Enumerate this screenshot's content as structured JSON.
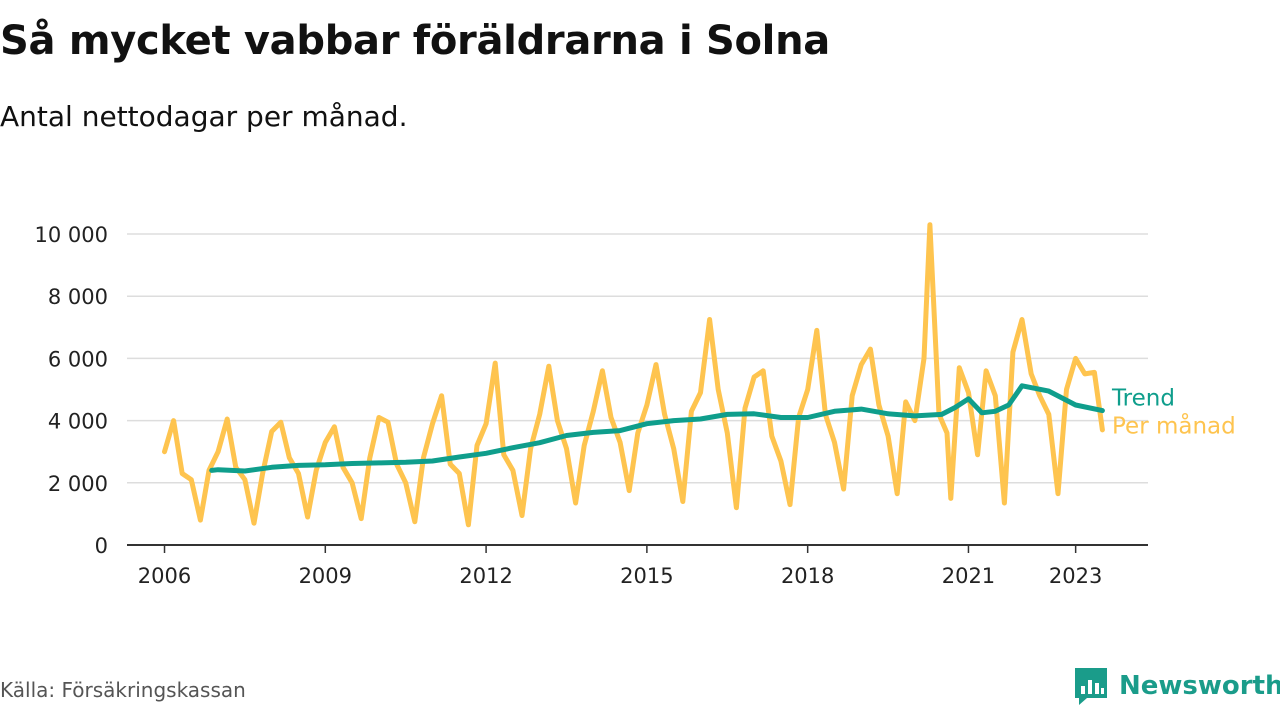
{
  "header": {
    "title": "Så mycket vabbar föräldrarna i Solna",
    "subtitle": "Antal nettodagar per månad."
  },
  "footer": {
    "source": "Källa: Försäkringskassan",
    "brand": "Newsworthy",
    "brand_icon": "bar-chart-speech-bubble-icon"
  },
  "colors": {
    "monthly": "#fec44f",
    "trend": "#0f9e8c",
    "grid": "#dddddd",
    "axis": "#333333",
    "brand": "#1a9c8a"
  },
  "chart_data": {
    "type": "line",
    "title": "Så mycket vabbar föräldrarna i Solna",
    "subtitle": "Antal nettodagar per månad.",
    "xlabel": "",
    "ylabel": "",
    "xlim": [
      2005.3,
      2024.35
    ],
    "ylim": [
      0,
      10000
    ],
    "x_ticks": [
      2006,
      2009,
      2012,
      2015,
      2018,
      2021,
      2023
    ],
    "x_tick_labels": [
      "2006",
      "2009",
      "2012",
      "2015",
      "2018",
      "2021",
      "2023"
    ],
    "y_ticks": [
      0,
      2000,
      4000,
      6000,
      8000,
      10000
    ],
    "y_tick_labels": [
      "0",
      "2 000",
      "4 000",
      "6 000",
      "8 000",
      "10 000"
    ],
    "grid": true,
    "legend": "inline labels at line ends (right)",
    "series": [
      {
        "name": "Trend",
        "points": [
          [
            2006.88,
            2400
          ],
          [
            2007.0,
            2420
          ],
          [
            2007.5,
            2380
          ],
          [
            2008.0,
            2500
          ],
          [
            2008.5,
            2560
          ],
          [
            2009.0,
            2580
          ],
          [
            2009.5,
            2620
          ],
          [
            2010.0,
            2640
          ],
          [
            2010.5,
            2660
          ],
          [
            2011.0,
            2700
          ],
          [
            2011.5,
            2830
          ],
          [
            2012.0,
            2950
          ],
          [
            2012.5,
            3130
          ],
          [
            2013.0,
            3290
          ],
          [
            2013.5,
            3520
          ],
          [
            2014.0,
            3620
          ],
          [
            2014.5,
            3680
          ],
          [
            2015.0,
            3900
          ],
          [
            2015.5,
            4000
          ],
          [
            2016.0,
            4050
          ],
          [
            2016.5,
            4200
          ],
          [
            2017.0,
            4220
          ],
          [
            2017.5,
            4100
          ],
          [
            2018.0,
            4100
          ],
          [
            2018.5,
            4300
          ],
          [
            2019.0,
            4370
          ],
          [
            2019.5,
            4220
          ],
          [
            2020.0,
            4150
          ],
          [
            2020.5,
            4200
          ],
          [
            2020.75,
            4420
          ],
          [
            2021.0,
            4700
          ],
          [
            2021.25,
            4250
          ],
          [
            2021.5,
            4300
          ],
          [
            2021.75,
            4500
          ],
          [
            2022.0,
            5120
          ],
          [
            2022.5,
            4950
          ],
          [
            2023.0,
            4500
          ],
          [
            2023.5,
            4320
          ]
        ]
      },
      {
        "name": "Per månad",
        "points": [
          [
            2006.0,
            3000
          ],
          [
            2006.17,
            4000
          ],
          [
            2006.33,
            2300
          ],
          [
            2006.5,
            2100
          ],
          [
            2006.67,
            800
          ],
          [
            2006.83,
            2400
          ],
          [
            2007.0,
            3000
          ],
          [
            2007.17,
            4050
          ],
          [
            2007.33,
            2500
          ],
          [
            2007.5,
            2100
          ],
          [
            2007.67,
            700
          ],
          [
            2007.83,
            2300
          ],
          [
            2008.0,
            3650
          ],
          [
            2008.17,
            3950
          ],
          [
            2008.33,
            2800
          ],
          [
            2008.5,
            2300
          ],
          [
            2008.67,
            900
          ],
          [
            2008.83,
            2400
          ],
          [
            2009.0,
            3300
          ],
          [
            2009.17,
            3800
          ],
          [
            2009.33,
            2500
          ],
          [
            2009.5,
            2000
          ],
          [
            2009.67,
            850
          ],
          [
            2009.83,
            2800
          ],
          [
            2010.0,
            4100
          ],
          [
            2010.17,
            3950
          ],
          [
            2010.33,
            2600
          ],
          [
            2010.5,
            2000
          ],
          [
            2010.67,
            750
          ],
          [
            2010.83,
            2800
          ],
          [
            2011.0,
            3900
          ],
          [
            2011.17,
            4800
          ],
          [
            2011.33,
            2600
          ],
          [
            2011.5,
            2300
          ],
          [
            2011.67,
            650
          ],
          [
            2011.83,
            3200
          ],
          [
            2012.0,
            3900
          ],
          [
            2012.17,
            5850
          ],
          [
            2012.33,
            2900
          ],
          [
            2012.5,
            2400
          ],
          [
            2012.67,
            950
          ],
          [
            2012.83,
            3100
          ],
          [
            2013.0,
            4200
          ],
          [
            2013.17,
            5750
          ],
          [
            2013.33,
            4000
          ],
          [
            2013.5,
            3100
          ],
          [
            2013.67,
            1350
          ],
          [
            2013.83,
            3200
          ],
          [
            2014.0,
            4300
          ],
          [
            2014.17,
            5600
          ],
          [
            2014.33,
            4100
          ],
          [
            2014.5,
            3300
          ],
          [
            2014.67,
            1750
          ],
          [
            2014.83,
            3600
          ],
          [
            2015.0,
            4500
          ],
          [
            2015.17,
            5800
          ],
          [
            2015.33,
            4200
          ],
          [
            2015.5,
            3100
          ],
          [
            2015.67,
            1400
          ],
          [
            2015.83,
            4300
          ],
          [
            2016.0,
            4900
          ],
          [
            2016.17,
            7250
          ],
          [
            2016.33,
            5000
          ],
          [
            2016.5,
            3600
          ],
          [
            2016.67,
            1200
          ],
          [
            2016.83,
            4400
          ],
          [
            2017.0,
            5400
          ],
          [
            2017.17,
            5600
          ],
          [
            2017.33,
            3500
          ],
          [
            2017.5,
            2700
          ],
          [
            2017.67,
            1300
          ],
          [
            2017.83,
            4100
          ],
          [
            2018.0,
            5000
          ],
          [
            2018.17,
            6900
          ],
          [
            2018.33,
            4200
          ],
          [
            2018.5,
            3300
          ],
          [
            2018.67,
            1800
          ],
          [
            2018.83,
            4800
          ],
          [
            2019.0,
            5800
          ],
          [
            2019.17,
            6300
          ],
          [
            2019.33,
            4500
          ],
          [
            2019.5,
            3500
          ],
          [
            2019.67,
            1650
          ],
          [
            2019.83,
            4600
          ],
          [
            2020.0,
            4000
          ],
          [
            2020.17,
            6000
          ],
          [
            2020.28,
            10300
          ],
          [
            2020.45,
            4200
          ],
          [
            2020.6,
            3600
          ],
          [
            2020.67,
            1500
          ],
          [
            2020.83,
            5700
          ],
          [
            2021.0,
            4900
          ],
          [
            2021.17,
            2900
          ],
          [
            2021.33,
            5600
          ],
          [
            2021.5,
            4800
          ],
          [
            2021.67,
            1350
          ],
          [
            2021.83,
            6200
          ],
          [
            2022.0,
            7250
          ],
          [
            2022.17,
            5500
          ],
          [
            2022.33,
            4800
          ],
          [
            2022.5,
            4200
          ],
          [
            2022.67,
            1650
          ],
          [
            2022.83,
            5000
          ],
          [
            2023.0,
            6000
          ],
          [
            2023.17,
            5500
          ],
          [
            2023.35,
            5550
          ],
          [
            2023.5,
            3700
          ]
        ]
      }
    ]
  }
}
